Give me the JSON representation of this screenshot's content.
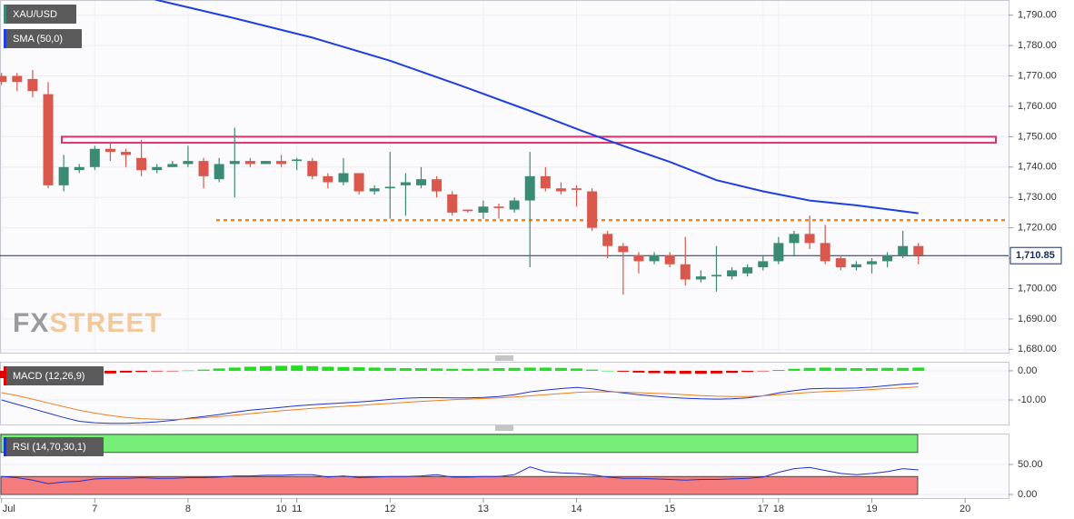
{
  "chart_data": [
    {
      "type": "candlestick",
      "title": "XAU/USD",
      "watermark": [
        "FX",
        "STREET"
      ],
      "up_color": "#3b8a76",
      "down_color": "#d9574b",
      "xlim": [
        -0.1,
        64.8
      ],
      "ylim": [
        1678.9,
        1795
      ],
      "yticks": [
        {
          "value": 1790,
          "label": "1,790.00"
        },
        {
          "value": 1780,
          "label": "1,780.00"
        },
        {
          "value": 1770,
          "label": "1,770.00"
        },
        {
          "value": 1760,
          "label": "1,760.00"
        },
        {
          "value": 1750,
          "label": "1,750.00"
        },
        {
          "value": 1740,
          "label": "1,740.00"
        },
        {
          "value": 1730,
          "label": "1,730.00"
        },
        {
          "value": 1720,
          "label": "1,720.00"
        },
        {
          "value": 1710,
          "label": "1,710.00"
        },
        {
          "value": 1700,
          "label": "1,700.00"
        },
        {
          "value": 1690,
          "label": "1,690.00"
        },
        {
          "value": 1680,
          "label": "1,680.00"
        }
      ],
      "open": [
        1770,
        1770,
        1769,
        1764,
        1734,
        1739,
        1740,
        1746,
        1745,
        1743,
        1739,
        1740,
        1741,
        1742,
        1736,
        1741,
        1742,
        1741,
        1742,
        1742,
        1742,
        1737,
        1735,
        1738,
        1732,
        1733,
        1734,
        1734,
        1736,
        1731,
        1726,
        1725,
        1727,
        1726,
        1729,
        1737,
        1733,
        1733,
        1732,
        1718,
        1714,
        1711,
        1709,
        1711,
        1708,
        1703,
        1704,
        1704,
        1705,
        1707,
        1709,
        1715,
        1718,
        1715,
        1710,
        1707,
        1708,
        1709,
        1711,
        1714
      ],
      "high": [
        1771,
        1771,
        1772,
        1768,
        1744,
        1741,
        1747,
        1748,
        1746,
        1749,
        1741,
        1742,
        1747,
        1743,
        1743,
        1753,
        1743,
        1742,
        1744,
        1743,
        1743,
        1738,
        1743,
        1738,
        1734,
        1745,
        1738,
        1740,
        1737,
        1732,
        1726,
        1729,
        1728,
        1730,
        1745,
        1740,
        1735,
        1734,
        1733,
        1719,
        1715,
        1712,
        1712,
        1712,
        1717,
        1706,
        1714,
        1707,
        1708,
        1711,
        1717,
        1719,
        1724,
        1721,
        1711,
        1709,
        1710,
        1712,
        1719,
        1715
      ],
      "low": [
        1767,
        1765,
        1763,
        1733,
        1732,
        1738,
        1739,
        1742,
        1740,
        1737,
        1738,
        1740,
        1740,
        1733,
        1735,
        1730,
        1740,
        1741,
        1740,
        1739,
        1736,
        1733,
        1734,
        1731,
        1731,
        1723,
        1724,
        1733,
        1730,
        1724,
        1725,
        1723,
        1723,
        1725,
        1707,
        1732,
        1731,
        1727,
        1719,
        1710,
        1698,
        1705,
        1708,
        1707,
        1701,
        1702,
        1699,
        1703,
        1704,
        1706,
        1708,
        1711,
        1713,
        1708,
        1706,
        1706,
        1705,
        1707,
        1710,
        1708
      ],
      "close": [
        1768,
        1768,
        1765,
        1734,
        1740,
        1740,
        1746,
        1745,
        1744,
        1739,
        1740,
        1741,
        1742,
        1737,
        1741,
        1742,
        1741,
        1742,
        1741,
        1742.5,
        1737,
        1735,
        1738,
        1732,
        1733,
        1733.5,
        1735,
        1736,
        1732,
        1725,
        1725.5,
        1727,
        1726.5,
        1729,
        1737,
        1733,
        1732,
        1732.5,
        1720,
        1714,
        1712,
        1709,
        1711,
        1708,
        1703,
        1704,
        1704.5,
        1706,
        1707,
        1709,
        1715,
        1718,
        1715,
        1709,
        1707,
        1708,
        1709,
        1711,
        1714,
        1711
      ],
      "overlays": [
        {
          "name": "SMA (50,0)",
          "color": "#1f3fe0",
          "x": [
            8,
            10,
            15,
            20,
            25,
            30,
            34,
            37,
            40,
            43,
            46,
            49,
            52,
            55,
            59
          ],
          "values": [
            1799,
            1795,
            1789,
            1782.6,
            1775,
            1766,
            1758.5,
            1752.6,
            1747,
            1741.7,
            1735.7,
            1732,
            1729,
            1727.4,
            1724.8
          ]
        }
      ],
      "resistance_zone": [
        1748,
        1750
      ],
      "zone_color": "#e0306e",
      "support_level": 1722.5,
      "support_color": "#f08a24",
      "last_price": {
        "value": 1710.85,
        "label": "1,710.85"
      }
    },
    {
      "type": "macd",
      "title": "MACD (12,26,9)",
      "ylim": [
        -18.4,
        3.1
      ],
      "yticks": [
        {
          "value": 0,
          "label": "0.00"
        },
        {
          "value": -10,
          "label": "-10.00"
        }
      ],
      "histogram": [
        -2.5,
        -2.4,
        -2.2,
        -2,
        -1.8,
        -1.5,
        -1.2,
        -0.9,
        -0.6,
        -0.4,
        -0.2,
        -0.1,
        0.1,
        0.4,
        0.8,
        1.1,
        1.4,
        1.6,
        1.7,
        1.8,
        1.6,
        1.4,
        1.3,
        1.2,
        1.1,
        1,
        0.9,
        0.9,
        0.8,
        0.7,
        0.7,
        0.8,
        0.9,
        1,
        1.1,
        1.1,
        1,
        0.8,
        0.4,
        0,
        -0.3,
        -0.6,
        -0.8,
        -0.9,
        -1,
        -1,
        -0.9,
        -0.7,
        -0.4,
        -0.1,
        0.3,
        0.7,
        1,
        1.1,
        1,
        0.9,
        0.9,
        1,
        1,
        1.1
      ],
      "hist_up_color": "#22dd22",
      "hist_down_color": "#e00000",
      "macd": [
        -10,
        -11.5,
        -13,
        -14.5,
        -16,
        -17.3,
        -17.8,
        -18,
        -18,
        -17.8,
        -17.5,
        -17,
        -16.3,
        -15.7,
        -15,
        -14.2,
        -13.5,
        -13,
        -12.5,
        -12,
        -11.6,
        -11.3,
        -11,
        -10.7,
        -10.3,
        -9.8,
        -9.4,
        -9.2,
        -9.2,
        -9.3,
        -9.3,
        -9.1,
        -8.8,
        -8.2,
        -7.2,
        -6.6,
        -6.1,
        -5.7,
        -6.2,
        -7,
        -7.6,
        -8.2,
        -8.7,
        -9.1,
        -9.4,
        -9.6,
        -9.7,
        -9.6,
        -9.3,
        -8.6,
        -7.6,
        -6.8,
        -6.2,
        -6,
        -6,
        -5.9,
        -5.6,
        -5.1,
        -4.6,
        -4.3
      ],
      "macd_color": "#2233cc",
      "signal": [
        -7.5,
        -8.5,
        -9.7,
        -11,
        -12.3,
        -13.5,
        -14.5,
        -15.3,
        -16,
        -16.4,
        -16.6,
        -16.7,
        -16.5,
        -16.1,
        -15.7,
        -15.2,
        -14.7,
        -14.2,
        -13.7,
        -13.3,
        -12.9,
        -12.5,
        -12.2,
        -11.9,
        -11.5,
        -11.2,
        -10.8,
        -10.5,
        -10.2,
        -9.9,
        -9.7,
        -9.5,
        -9.3,
        -9,
        -8.6,
        -8.2,
        -7.8,
        -7.4,
        -7.2,
        -7.2,
        -7.3,
        -7.5,
        -7.7,
        -7.9,
        -8.2,
        -8.5,
        -8.7,
        -8.8,
        -8.8,
        -8.6,
        -8.2,
        -7.8,
        -7.4,
        -7.1,
        -6.9,
        -6.7,
        -6.4,
        -6.1,
        -5.8,
        -5.5
      ],
      "signal_color": "#f07f1a"
    },
    {
      "type": "line",
      "title": "RSI (14,70,30,1)",
      "ylim": [
        -6,
        101.5
      ],
      "yticks": [
        {
          "value": 50,
          "label": "50.00"
        },
        {
          "value": 0,
          "label": "0.00"
        }
      ],
      "values": [
        30,
        28,
        24,
        18,
        21,
        22,
        26,
        27,
        27,
        28,
        27,
        27,
        28,
        28,
        29,
        31,
        31,
        32,
        32,
        33,
        33,
        29,
        31,
        28,
        29,
        30,
        30,
        31,
        33,
        29,
        29,
        30,
        30,
        33,
        46,
        38,
        36,
        35,
        33,
        29,
        27,
        27,
        26,
        25,
        24,
        25,
        25,
        26,
        27,
        29,
        37,
        43,
        45,
        40,
        35,
        33,
        35,
        38,
        43,
        41
      ],
      "color": "#2233cc",
      "overbought": [
        70,
        100
      ],
      "overbought_color": "#77ee77",
      "oversold": [
        0,
        30
      ],
      "oversold_color": "#f47c7c",
      "xticks": [
        {
          "value": 0,
          "label": "Jul"
        },
        {
          "value": 6,
          "label": "7"
        },
        {
          "value": 12,
          "label": "8"
        },
        {
          "value": 18,
          "label": "10"
        },
        {
          "value": 19,
          "label": "11"
        },
        {
          "value": 25,
          "label": "12"
        },
        {
          "value": 31,
          "label": "13"
        },
        {
          "value": 37,
          "label": "14"
        },
        {
          "value": 43,
          "label": "15"
        },
        {
          "value": 49,
          "label": "17"
        },
        {
          "value": 50,
          "label": "18"
        },
        {
          "value": 56,
          "label": "19"
        },
        {
          "value": 62,
          "label": "20"
        }
      ]
    }
  ]
}
